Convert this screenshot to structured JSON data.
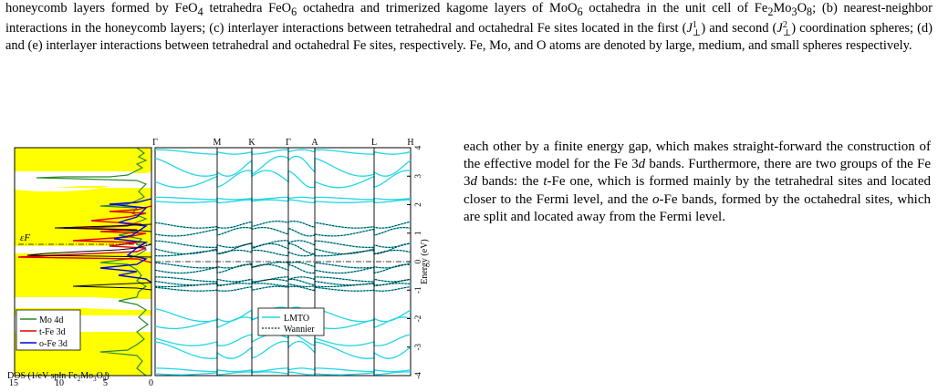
{
  "caption": {
    "part1": "honeycomb layers formed by FeO",
    "sub1": "4",
    "part2": " tetrahedra FeO",
    "sub2": "6",
    "part3": " octahedra and trimerized kagome layers of MoO",
    "sub3": "6",
    "part4": " octahedra in the unit cell of Fe",
    "sub4": "2",
    "part5": "Mo",
    "sub5": "3",
    "part6": "O",
    "sub6": "8",
    "part7": "; (b) nearest-neighbor interactions in the honeycomb layers; (c) interlayer interactions between tetrahedral and octahedral Fe sites located in the first (",
    "j1": "J",
    "j1_sup": "1",
    "j1_sub": "⊥",
    "part8": ") and second (",
    "j2": "J",
    "j2_sup": "2",
    "j2_sub": "⊥",
    "part9": ") coordination spheres; (d) and (e) interlayer interactions between tetrahedral and octahedral Fe sites, respectively. Fe, Mo, and O atoms are denoted by large, medium, and small spheres respectively."
  },
  "body_text": {
    "t1": "each other by a finite energy gap, which makes straight-forward the construction of the effective model for the Fe ",
    "d1": "d",
    "t2": " bands. Furthermore, there are two groups of the Fe ",
    "d2": "d",
    "t3": " bands: the ",
    "t_it": "t",
    "t4": "-Fe one, which is formed mainly by the tetrahedral sites and located closer to the Fermi level, and the ",
    "o_it": "o",
    "t5": "-Fe bands, formed by the octahedral sites, which are split and located away from the Fermi level.",
    "num3a": "3",
    "num3b": "3"
  },
  "chart_data": [
    {
      "type": "area",
      "panel": "dos",
      "xlabel": "DOS (1/eV spin Fe2Mo3O8)",
      "xticks": [
        "15",
        "10",
        "5",
        "0"
      ],
      "xlim": [
        15,
        0
      ],
      "ylim": [
        -4,
        4
      ],
      "fermi_label": "εF",
      "legend": [
        "Mo 4d",
        "t-Fe 3d",
        "o-Fe 3d"
      ],
      "colors": {
        "total": "#ffff00",
        "mo": "#2a8a2a",
        "tfe": "#e00000",
        "ofe": "#0000dd"
      }
    },
    {
      "type": "line",
      "panel": "bands",
      "kpoints": [
        "Γ",
        "M",
        "K",
        "Γ",
        "A",
        "L",
        "H"
      ],
      "ylabel": "Energy (eV)",
      "ylim": [
        -4,
        4
      ],
      "yticks": [
        "-4",
        "-3",
        "-2",
        "-1",
        "0",
        "1",
        "2",
        "3",
        "4"
      ],
      "legend": [
        "LMTO",
        "Wannier"
      ],
      "colors": {
        "lmto": "#22d6e6",
        "wannier": "#222222"
      }
    }
  ]
}
